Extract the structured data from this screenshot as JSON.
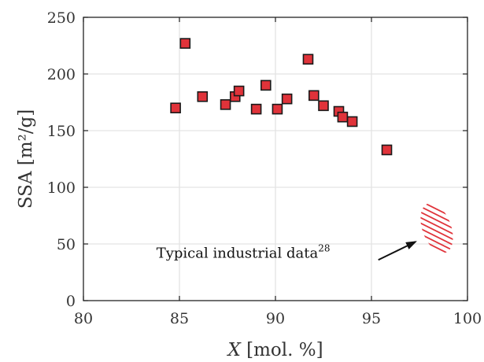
{
  "chart_data": {
    "type": "scatter",
    "xlabel": {
      "var": "X",
      "rest": " [mol. %]"
    },
    "ylabel": "SSA [m²/g]",
    "xlim": [
      80,
      100
    ],
    "ylim": [
      0,
      250
    ],
    "xticks": [
      80,
      85,
      90,
      95,
      100
    ],
    "yticks": [
      0,
      50,
      100,
      150,
      200,
      250
    ],
    "grid": true,
    "colors": {
      "marker": "#e0333a",
      "hatch": "#e0333a",
      "grid": "#e3e3e3"
    },
    "series": [
      {
        "marker": "square",
        "points": [
          [
            84.8,
            170
          ],
          [
            85.3,
            227
          ],
          [
            86.2,
            180
          ],
          [
            87.4,
            173
          ],
          [
            87.9,
            180
          ],
          [
            88.1,
            185
          ],
          [
            89.0,
            169
          ],
          [
            89.5,
            190
          ],
          [
            90.1,
            169
          ],
          [
            90.6,
            178
          ],
          [
            91.7,
            213
          ],
          [
            92.0,
            181
          ],
          [
            92.5,
            172
          ],
          [
            93.3,
            167
          ],
          [
            93.5,
            162
          ],
          [
            94.0,
            158
          ],
          [
            95.8,
            133
          ]
        ]
      }
    ],
    "region": {
      "shape": "hatched-ellipse",
      "center": [
        98.4,
        64
      ],
      "radius": [
        0.75,
        23
      ],
      "tilt_deg": -20
    },
    "annotation": {
      "text": "Typical industrial data",
      "superscript": "28",
      "anchor": [
        83.8,
        38
      ],
      "arrow_to": [
        97.3,
        52
      ]
    }
  }
}
